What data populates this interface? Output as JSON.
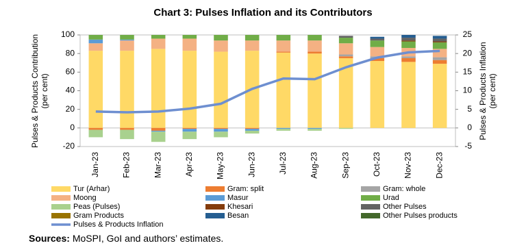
{
  "chart_data": {
    "type": "bar_line",
    "title": "Chart 3: Pulses Inflation and its Contributors",
    "ylabel": [
      "Pulses & Products Contribution",
      "(per cent)"
    ],
    "y2label": [
      "Pulses & Products Inflation",
      "(per cent)"
    ],
    "categories": [
      "Jan-23",
      "Feb-23",
      "Mar-23",
      "Apr-23",
      "May-23",
      "Jun-23",
      "Jul-23",
      "Aug-23",
      "Sep-23",
      "Oct-23",
      "Nov-23",
      "Dec-23"
    ],
    "ylim": [
      -20,
      100
    ],
    "yticks": [
      -20,
      0,
      20,
      40,
      60,
      80,
      100
    ],
    "y2lim": [
      -5,
      25
    ],
    "y2ticks": [
      -5,
      0,
      5,
      10,
      15,
      20,
      25
    ],
    "series": [
      {
        "name": "Tur (Arhar)",
        "color": "#FFD966",
        "values": [
          83,
          83,
          85,
          83,
          82,
          83,
          81,
          80,
          75,
          72,
          71,
          69
        ]
      },
      {
        "name": "Gram: split",
        "color": "#ED7D31",
        "values": [
          -2,
          -2,
          -3,
          -1,
          -1,
          -1,
          1,
          2,
          2,
          3,
          4,
          4
        ]
      },
      {
        "name": "Gram: whole",
        "color": "#A5A5A5",
        "values": [
          0,
          0,
          0,
          0,
          0,
          0,
          0,
          0,
          2,
          2,
          2,
          3
        ]
      },
      {
        "name": "Moong",
        "color": "#F4B183",
        "values": [
          8,
          11,
          11,
          13,
          12,
          11,
          12,
          12,
          12,
          10,
          9,
          9
        ]
      },
      {
        "name": "Masur",
        "color": "#5B9BD5",
        "values": [
          4,
          1,
          -1,
          -3,
          -3,
          -2,
          -1,
          -1,
          0,
          0,
          0,
          0
        ]
      },
      {
        "name": "Urad",
        "color": "#70AD47",
        "values": [
          5,
          5,
          4,
          4,
          6,
          6,
          6,
          6,
          6,
          7,
          7,
          7
        ]
      },
      {
        "name": "Peas (Pulses)",
        "color": "#A9D18E",
        "values": [
          -8,
          -10,
          -11,
          -8,
          -6,
          -3,
          -2,
          -2,
          -1,
          0,
          0,
          0
        ]
      },
      {
        "name": "Khesari",
        "color": "#843C0C",
        "values": [
          0,
          0,
          0,
          0,
          0,
          0,
          0,
          0,
          0,
          0,
          1,
          1
        ]
      },
      {
        "name": "Other Pulses",
        "color": "#636363",
        "values": [
          0,
          0,
          0,
          0,
          0,
          0,
          0,
          0,
          2,
          2,
          3,
          3
        ]
      },
      {
        "name": "Gram Products",
        "color": "#997300",
        "values": [
          0,
          0,
          0,
          0,
          0,
          0,
          0,
          0,
          0,
          0,
          0,
          0
        ]
      },
      {
        "name": "Besan",
        "color": "#255E91",
        "values": [
          0,
          0,
          0,
          0,
          0,
          0,
          0,
          0,
          0,
          2,
          3,
          3
        ]
      },
      {
        "name": "Other Pulses products",
        "color": "#43682B",
        "values": [
          0,
          0,
          0,
          0,
          0,
          0,
          0,
          0,
          0,
          0,
          0,
          0
        ]
      },
      {
        "name": "Pulses & Products Inflation",
        "color": "#6E8FD0",
        "type": "line",
        "axis": "y2",
        "values": [
          4.4,
          4.2,
          4.4,
          5.2,
          6.5,
          10.5,
          13.3,
          13.1,
          16.3,
          18.9,
          20.3,
          20.7
        ]
      }
    ],
    "source_label": "Sources:",
    "source_text": "MoSPI, GoI and authors’ estimates."
  }
}
